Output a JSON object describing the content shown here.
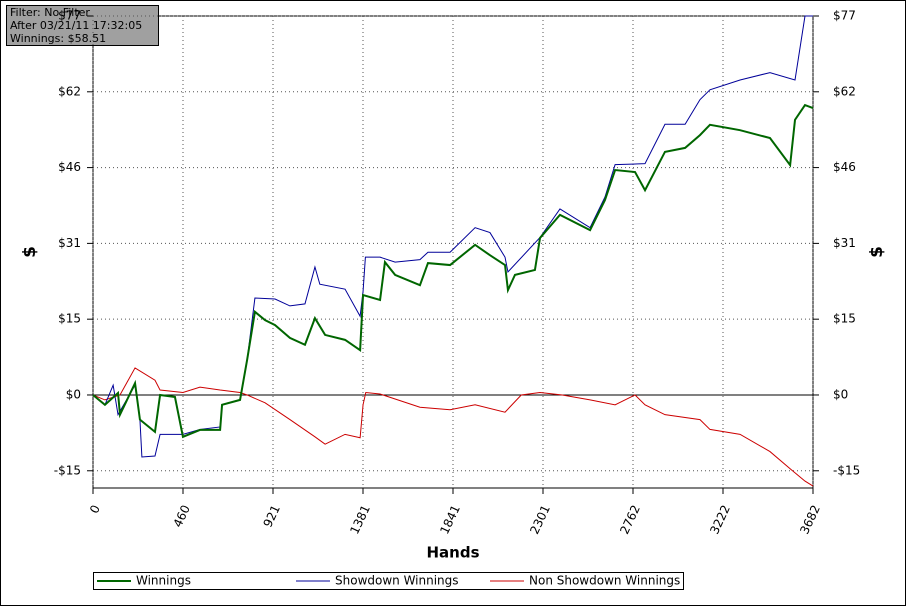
{
  "chart_data": {
    "type": "line",
    "annotations": [
      "Filter: No Filter",
      "After 03/21/11 17:32:05",
      "Winnings: $58.51"
    ],
    "xlabel": "Hands",
    "ylabel": "$",
    "y2label": "$",
    "xlim": [
      0,
      3682
    ],
    "xticks": [
      0,
      {
        "value": 460.25,
        "label": "460"
      },
      {
        "value": 920.5,
        "label": "921"
      },
      {
        "value": 1380.75,
        "label": "1381"
      },
      1841,
      {
        "value": 2301.25,
        "label": "2301"
      },
      {
        "value": 2761.5,
        "label": "2762"
      },
      {
        "value": 3221.75,
        "label": "3222"
      },
      3682
    ],
    "ylim": [
      -18.9,
      77
    ],
    "yticks": [
      {
        "value": -15.4,
        "label": "-$15"
      },
      {
        "value": 0,
        "label": "$0"
      },
      {
        "value": 15.4,
        "label": "$15"
      },
      {
        "value": 30.8,
        "label": "$31"
      },
      {
        "value": 46.2,
        "label": "$46"
      },
      {
        "value": 61.6,
        "label": "$62"
      },
      {
        "value": 77,
        "label": "$77"
      }
    ],
    "y2lim": [
      -18.9,
      77
    ],
    "y2ticks": [
      {
        "value": -15.4,
        "label": "-$15"
      },
      {
        "value": 0,
        "label": "$0"
      },
      {
        "value": 15.4,
        "label": "$15"
      },
      {
        "value": 30.8,
        "label": "$31"
      },
      {
        "value": 46.2,
        "label": "$46"
      },
      {
        "value": 61.6,
        "label": "$62"
      },
      {
        "value": 77,
        "label": "$77"
      }
    ],
    "grid": true,
    "series": [
      {
        "name": "Winnings",
        "color": "#006600",
        "x": [
          0,
          61,
          128,
          138,
          215,
          240,
          317,
          343,
          419,
          460,
          547,
          650,
          660,
          752,
          788,
          828,
          880,
          931,
          1007,
          1084,
          1135,
          1187,
          1289,
          1366,
          1381,
          1468,
          1493,
          1545,
          1672,
          1713,
          1826,
          1954,
          2030,
          2107,
          2122,
          2158,
          2260,
          2286,
          2388,
          2542,
          2618,
          2670,
          2772,
          2823,
          2925,
          3028,
          3104,
          3155,
          3309,
          3462,
          3565,
          3590,
          3641,
          3682
        ],
        "values": [
          0,
          -2,
          0.4,
          -4,
          2.4,
          -5,
          -7.5,
          0,
          -0.4,
          -8.5,
          -7.1,
          -7.1,
          -2,
          -1,
          7.1,
          16.9,
          15.2,
          14.2,
          11.6,
          10.2,
          15.6,
          12.2,
          11.2,
          9.1,
          20.3,
          19.3,
          27,
          24.4,
          22.3,
          26.8,
          26.4,
          30.5,
          28.4,
          26.4,
          21.3,
          24.4,
          25.4,
          31.9,
          36.6,
          33.5,
          39.6,
          45.7,
          45.3,
          41.6,
          49.4,
          50.2,
          52.8,
          54.9,
          53.8,
          52.2,
          46.7,
          55.9,
          58.9,
          58.3
        ]
      },
      {
        "name": "Showdown Winnings",
        "color": "#000099",
        "x": [
          0,
          61,
          103,
          128,
          215,
          240,
          250,
          317,
          343,
          460,
          547,
          650,
          660,
          752,
          788,
          828,
          931,
          1007,
          1084,
          1135,
          1160,
          1289,
          1366,
          1381,
          1393,
          1468,
          1545,
          1672,
          1713,
          1826,
          1954,
          2030,
          2107,
          2122,
          2286,
          2388,
          2542,
          2618,
          2670,
          2823,
          2925,
          3028,
          3104,
          3155,
          3309,
          3462,
          3590,
          3641,
          3682
        ],
        "values": [
          0,
          -2,
          2,
          -4,
          2,
          -5,
          -12.6,
          -12.4,
          -8,
          -8,
          -7,
          -6.5,
          -2,
          -1,
          7,
          19.7,
          19.5,
          18.1,
          18.5,
          26,
          22.5,
          21.5,
          16,
          21,
          28,
          28,
          27,
          27.5,
          29,
          29,
          34,
          33,
          28,
          25,
          32,
          37.8,
          34,
          40.2,
          46.8,
          47,
          55,
          55,
          60,
          62,
          64,
          65.5,
          64,
          77,
          77
        ]
      },
      {
        "name": "Non Showdown Winnings",
        "color": "#cc0000",
        "x": [
          0,
          61,
          138,
          215,
          317,
          343,
          460,
          547,
          650,
          752,
          788,
          880,
          1007,
          1135,
          1187,
          1289,
          1366,
          1381,
          1395,
          1468,
          1672,
          1826,
          1954,
          2107,
          2190,
          2286,
          2400,
          2542,
          2670,
          2772,
          2823,
          2925,
          3104,
          3155,
          3309,
          3462,
          3565,
          3641,
          3682
        ],
        "values": [
          0,
          -1,
          0,
          5.5,
          3,
          1,
          0.5,
          1.6,
          1,
          0.5,
          0,
          -1.6,
          -5,
          -8.5,
          -10,
          -8,
          -8.7,
          -2,
          0.5,
          0.2,
          -2.5,
          -3,
          -2,
          -3.5,
          0,
          0.5,
          0,
          -1,
          -2,
          0,
          -2,
          -4,
          -5,
          -7,
          -8,
          -11.5,
          -15,
          -17.5,
          -18.5
        ]
      }
    ]
  }
}
